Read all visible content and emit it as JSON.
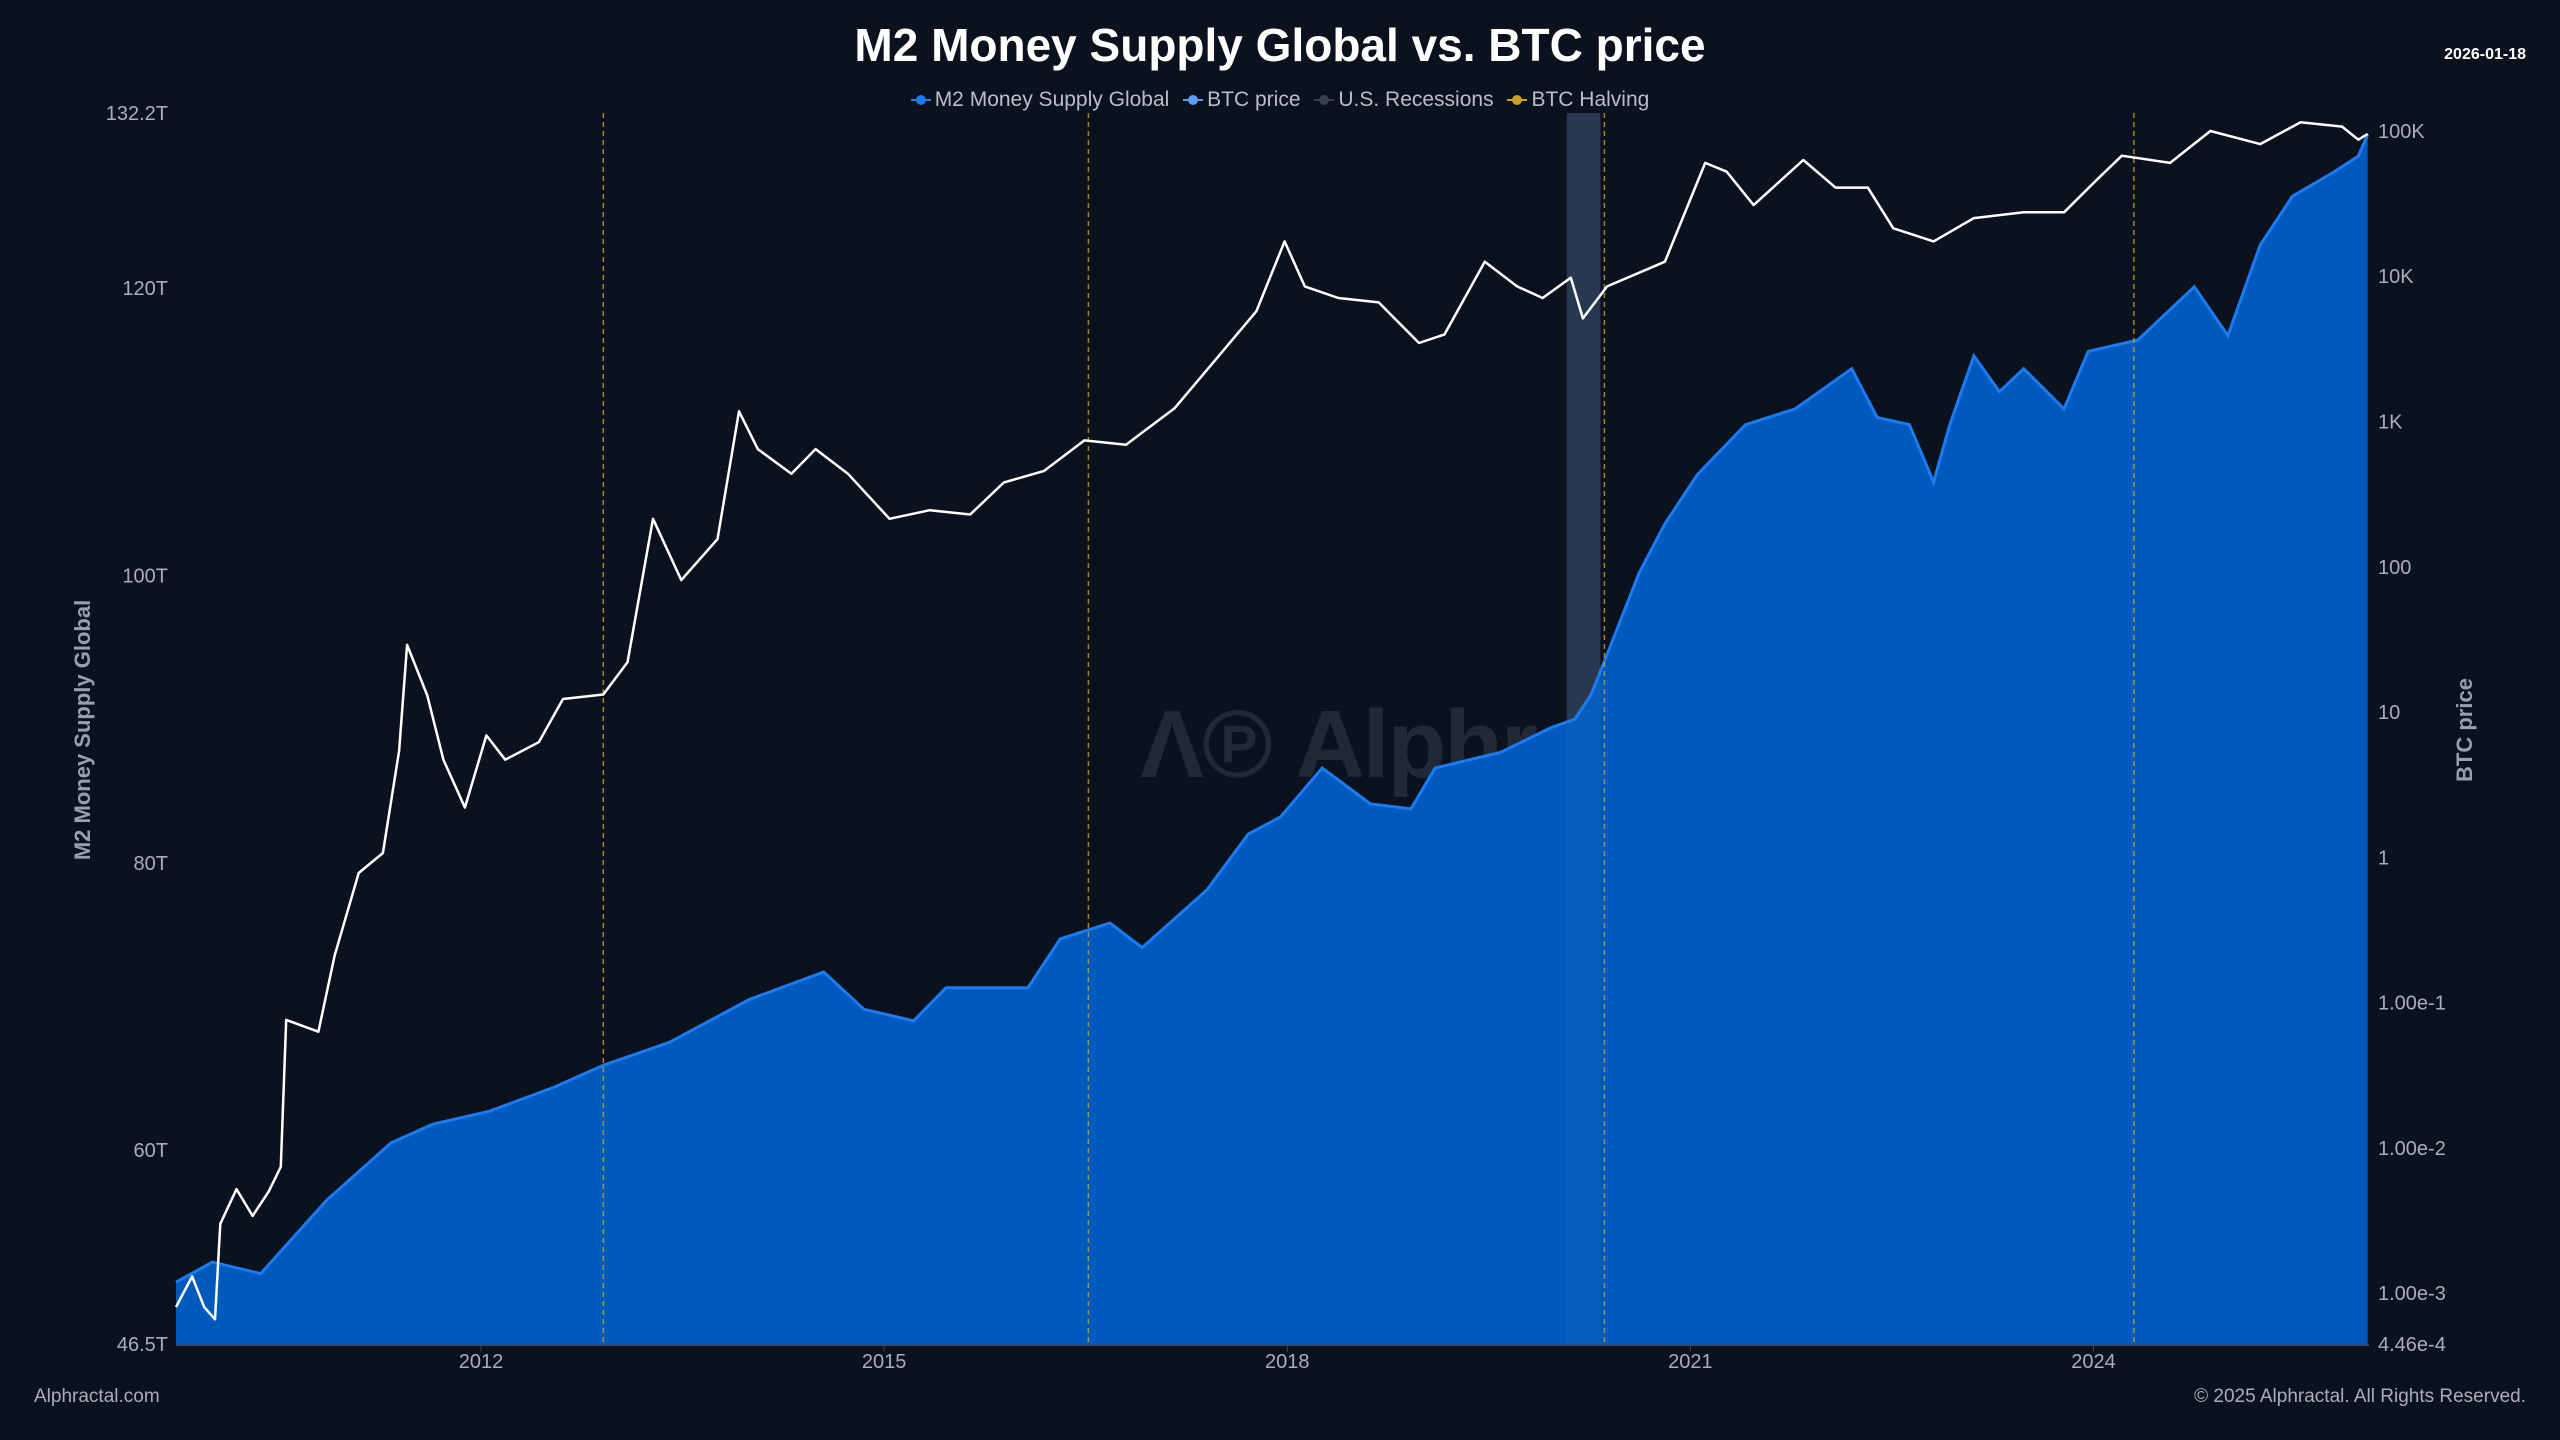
{
  "chart_data": {
    "type": "area+line",
    "title": "M2 Money Supply Global vs. BTC price",
    "date": "2026-01-18",
    "legend": {
      "placement": "top-center",
      "entries": [
        {
          "label": "M2 Money Supply Global",
          "color": "#1e7bf2"
        },
        {
          "label": "BTC price",
          "color": "#5b9cf5"
        },
        {
          "label": "U.S. Recessions",
          "color": "#3a404c"
        },
        {
          "label": "BTC Halving",
          "color": "#c9a227"
        }
      ]
    },
    "x_axis": {
      "ticks": [
        "2012",
        "2015",
        "2018",
        "2021",
        "2024"
      ],
      "tick_values": [
        2012,
        2015,
        2018,
        2021,
        2024
      ],
      "range": [
        2009.73,
        2026.05
      ]
    },
    "y_left": {
      "label": "M2 Money Supply Global",
      "range": [
        46.5,
        132.2
      ],
      "unit": "T",
      "scale": "linear",
      "ticks": [
        "132.2T",
        "120T",
        "100T",
        "80T",
        "60T",
        "46.5T"
      ],
      "tick_values": [
        132.2,
        120,
        100,
        80,
        60,
        46.5
      ]
    },
    "y_right": {
      "label": "BTC price",
      "scale": "log",
      "range": [
        0.000446,
        133000
      ],
      "ticks": [
        "100K",
        "10K",
        "1K",
        "100",
        "10",
        "1",
        "1.00e-1",
        "1.00e-2",
        "1.00e-3",
        "4.46e-4"
      ],
      "tick_values": [
        100000,
        10000,
        1000,
        100,
        10,
        1,
        0.1,
        0.01,
        0.001,
        0.000446
      ]
    },
    "grid": false,
    "series": [
      {
        "name": "M2 Money Supply Global",
        "type": "area",
        "axis": "left",
        "color": "#0059bd",
        "line_color": "#1a7cf0",
        "points": [
          [
            2009.73,
            50.8
          ],
          [
            2010.0,
            52.2
          ],
          [
            2010.36,
            51.4
          ],
          [
            2010.85,
            56.5
          ],
          [
            2011.33,
            60.5
          ],
          [
            2011.64,
            61.8
          ],
          [
            2012.06,
            62.7
          ],
          [
            2012.55,
            64.4
          ],
          [
            2012.91,
            65.9
          ],
          [
            2013.4,
            67.5
          ],
          [
            2014.0,
            70.5
          ],
          [
            2014.55,
            72.4
          ],
          [
            2014.85,
            69.8
          ],
          [
            2015.22,
            69.0
          ],
          [
            2015.46,
            71.3
          ],
          [
            2016.07,
            71.3
          ],
          [
            2016.31,
            74.7
          ],
          [
            2016.68,
            75.8
          ],
          [
            2016.92,
            74.1
          ],
          [
            2017.4,
            78.1
          ],
          [
            2017.71,
            82.0
          ],
          [
            2017.95,
            83.2
          ],
          [
            2018.26,
            86.6
          ],
          [
            2018.62,
            84.1
          ],
          [
            2018.92,
            83.75
          ],
          [
            2019.1,
            86.6
          ],
          [
            2019.59,
            87.7
          ],
          [
            2019.96,
            89.4
          ],
          [
            2020.14,
            90.0
          ],
          [
            2020.26,
            91.7
          ],
          [
            2020.38,
            94.5
          ],
          [
            2020.62,
            100.2
          ],
          [
            2020.81,
            103.6
          ],
          [
            2021.05,
            107.0
          ],
          [
            2021.41,
            110.5
          ],
          [
            2021.78,
            111.6
          ],
          [
            2022.2,
            114.4
          ],
          [
            2022.39,
            111.0
          ],
          [
            2022.63,
            110.5
          ],
          [
            2022.81,
            106.5
          ],
          [
            2022.93,
            110.5
          ],
          [
            2023.11,
            115.3
          ],
          [
            2023.3,
            112.8
          ],
          [
            2023.48,
            114.4
          ],
          [
            2023.78,
            111.6
          ],
          [
            2023.96,
            115.6
          ],
          [
            2024.33,
            116.4
          ],
          [
            2024.75,
            120.1
          ],
          [
            2025.0,
            116.7
          ],
          [
            2025.24,
            123.0
          ],
          [
            2025.48,
            126.4
          ],
          [
            2025.79,
            128.1
          ],
          [
            2025.97,
            129.2
          ],
          [
            2026.04,
            130.7
          ]
        ]
      },
      {
        "name": "BTC price",
        "type": "line",
        "axis": "right",
        "color": "#ffffff",
        "points": [
          [
            2009.73,
            0.0008
          ],
          [
            2009.85,
            0.0013
          ],
          [
            2009.94,
            0.0008
          ],
          [
            2010.02,
            0.00066
          ],
          [
            2010.06,
            0.003
          ],
          [
            2010.18,
            0.0052
          ],
          [
            2010.3,
            0.0034
          ],
          [
            2010.42,
            0.005
          ],
          [
            2010.51,
            0.0074
          ],
          [
            2010.55,
            0.076
          ],
          [
            2010.79,
            0.063
          ],
          [
            2010.91,
            0.21
          ],
          [
            2011.09,
            0.78
          ],
          [
            2011.27,
            1.07
          ],
          [
            2011.39,
            5.4
          ],
          [
            2011.45,
            29
          ],
          [
            2011.6,
            13
          ],
          [
            2011.72,
            4.7
          ],
          [
            2011.88,
            2.2
          ],
          [
            2012.04,
            6.9
          ],
          [
            2012.18,
            4.7
          ],
          [
            2012.43,
            6.2
          ],
          [
            2012.61,
            12.3
          ],
          [
            2012.91,
            13.2
          ],
          [
            2013.09,
            22
          ],
          [
            2013.28,
            214
          ],
          [
            2013.49,
            81
          ],
          [
            2013.76,
            155
          ],
          [
            2013.92,
            1175
          ],
          [
            2014.06,
            646
          ],
          [
            2014.31,
            437
          ],
          [
            2014.49,
            646
          ],
          [
            2014.73,
            437
          ],
          [
            2015.04,
            214
          ],
          [
            2015.34,
            245
          ],
          [
            2015.64,
            229
          ],
          [
            2015.89,
            380
          ],
          [
            2016.19,
            457
          ],
          [
            2016.49,
            741
          ],
          [
            2016.8,
            692
          ],
          [
            2017.16,
            1230
          ],
          [
            2017.47,
            2690
          ],
          [
            2017.77,
            5750
          ],
          [
            2017.98,
            17380
          ],
          [
            2018.13,
            8510
          ],
          [
            2018.38,
            7080
          ],
          [
            2018.68,
            6610
          ],
          [
            2018.98,
            3470
          ],
          [
            2019.17,
            3980
          ],
          [
            2019.47,
            12590
          ],
          [
            2019.71,
            8510
          ],
          [
            2019.9,
            7080
          ],
          [
            2020.11,
            9770
          ],
          [
            2020.2,
            5130
          ],
          [
            2020.38,
            8510
          ],
          [
            2020.81,
            12590
          ],
          [
            2021.11,
            60260
          ],
          [
            2021.27,
            52480
          ],
          [
            2021.47,
            30900
          ],
          [
            2021.84,
            63100
          ],
          [
            2022.08,
            40740
          ],
          [
            2022.32,
            40740
          ],
          [
            2022.51,
            21380
          ],
          [
            2022.81,
            17380
          ],
          [
            2023.11,
            25120
          ],
          [
            2023.48,
            27540
          ],
          [
            2023.78,
            27540
          ],
          [
            2024.02,
            45710
          ],
          [
            2024.21,
            67610
          ],
          [
            2024.57,
            60260
          ],
          [
            2024.87,
            100000
          ],
          [
            2025.24,
            81280
          ],
          [
            2025.54,
            114800
          ],
          [
            2025.85,
            107200
          ],
          [
            2025.97,
            87100
          ],
          [
            2026.04,
            95500
          ]
        ]
      }
    ],
    "recessions": [
      [
        2020.08,
        2020.33
      ]
    ],
    "halvings": [
      2012.91,
      2016.52,
      2020.36,
      2024.3
    ]
  },
  "watermark": "Alphractal",
  "footer": {
    "left": "Alphractal.com",
    "right": "© 2025 Alphractal. All Rights Reserved."
  }
}
